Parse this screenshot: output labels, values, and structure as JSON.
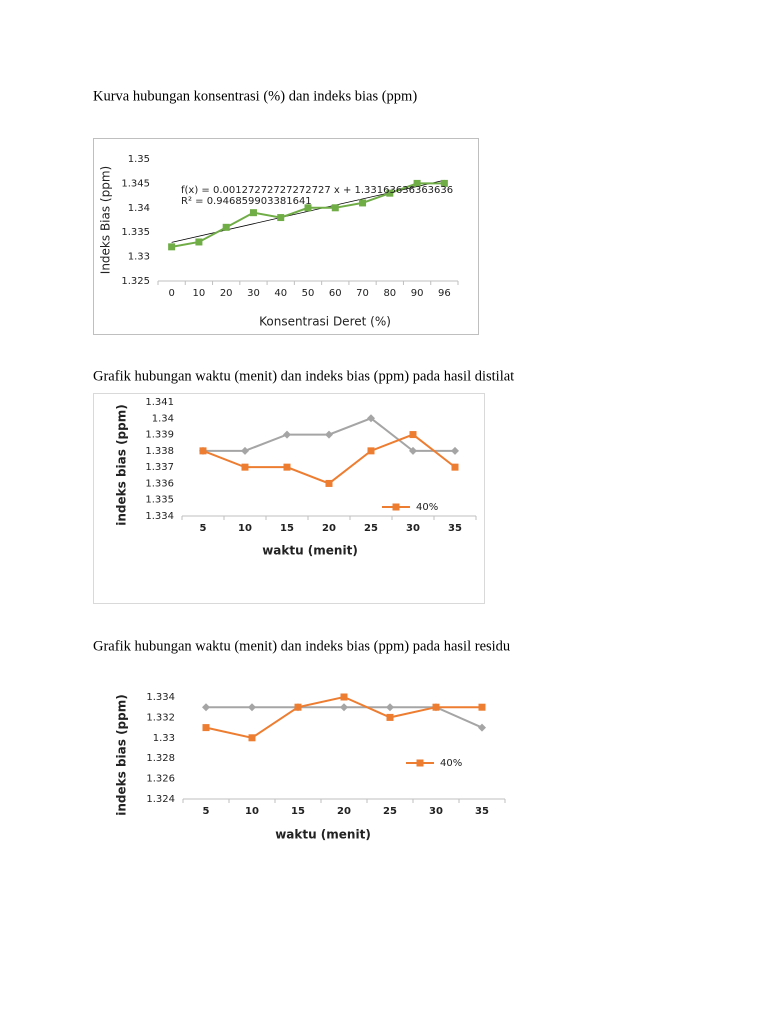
{
  "headings": [
    "Kurva hubungan konsentrasi (%) dan indeks bias (ppm)",
    "Grafik hubungan waktu (menit) dan indeks bias (ppm) pada hasil distilat",
    "Grafik hubungan waktu (menit) dan indeks bias (ppm) pada hasil residu"
  ],
  "chart_data": [
    {
      "type": "line",
      "x_label": "Konsentrasi Deret (%)",
      "y_label": "Indeks Bias (ppm)",
      "categories": [
        "0",
        "10",
        "20",
        "30",
        "40",
        "50",
        "60",
        "70",
        "80",
        "90",
        "96"
      ],
      "series": [
        {
          "color": "#70ad47",
          "marker": "square",
          "values": [
            1.332,
            1.333,
            1.336,
            1.339,
            1.338,
            1.34,
            1.34,
            1.341,
            1.343,
            1.345,
            1.345
          ]
        }
      ],
      "trendline": {
        "slope": 0.00127272727272727,
        "intercept": 1.33163636363636,
        "equation": "f(x) = 0.00127272727272727 x + 1.33163636363636",
        "r_squared": "R² = 0.946859903381641",
        "color": "#000000"
      },
      "ylim": [
        1.325,
        1.35
      ],
      "yticks": [
        1.325,
        1.33,
        1.335,
        1.34,
        1.345,
        1.35
      ],
      "grid": false
    },
    {
      "type": "line",
      "x_label": "waktu (menit)",
      "y_label": "indeks bias (ppm)",
      "categories": [
        "5",
        "10",
        "15",
        "20",
        "25",
        "30",
        "35"
      ],
      "series": [
        {
          "color": "#a5a5a5",
          "marker": "diamond",
          "values": [
            1.338,
            1.338,
            1.339,
            1.339,
            1.34,
            1.338,
            1.338
          ]
        },
        {
          "name": "40%",
          "color": "#ed7d31",
          "marker": "square",
          "values": [
            1.338,
            1.337,
            1.337,
            1.336,
            1.338,
            1.339,
            1.337
          ]
        }
      ],
      "ylim": [
        1.334,
        1.341
      ],
      "yticks": [
        1.334,
        1.335,
        1.336,
        1.337,
        1.338,
        1.339,
        1.34,
        1.341
      ],
      "grid": false
    },
    {
      "type": "line",
      "x_label": "waktu (menit)",
      "y_label": "indeks bias (ppm)",
      "categories": [
        "5",
        "10",
        "15",
        "20",
        "25",
        "30",
        "35"
      ],
      "series": [
        {
          "color": "#a5a5a5",
          "marker": "diamond",
          "values": [
            1.333,
            1.333,
            1.333,
            1.333,
            1.333,
            1.333,
            1.331
          ]
        },
        {
          "name": "40%",
          "color": "#ed7d31",
          "marker": "square",
          "values": [
            1.331,
            1.33,
            1.333,
            1.334,
            1.332,
            1.333,
            1.333
          ]
        }
      ],
      "ylim": [
        1.324,
        1.334
      ],
      "yticks": [
        1.324,
        1.326,
        1.328,
        1.33,
        1.332,
        1.334
      ],
      "grid": false
    }
  ]
}
